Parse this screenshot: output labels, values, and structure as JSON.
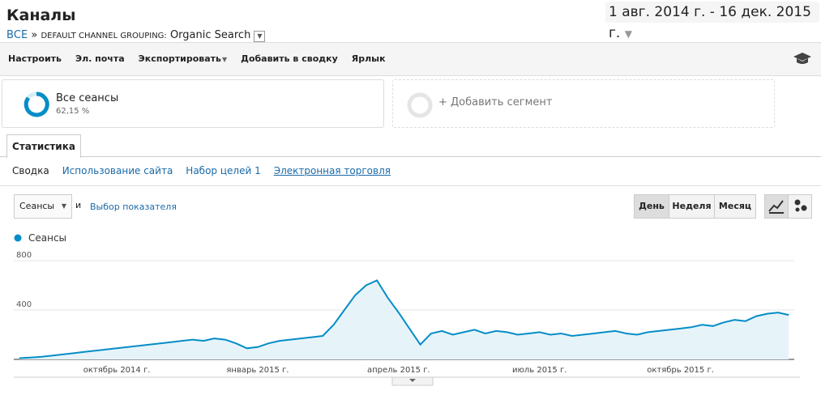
{
  "header": {
    "title": "Каналы",
    "date_range": "1 авг. 2014 г. - 16 дек. 2015 г.",
    "breadcrumb": {
      "all": "ВСЕ",
      "separator": "»",
      "dimension": "DEFAULT CHANNEL GROUPING:",
      "value": "Organic Search"
    }
  },
  "toolbar": [
    "Настроить",
    "Эл. почта",
    "Экспортировать",
    "Добавить в сводку",
    "Ярлык"
  ],
  "segments": [
    {
      "name": "Все сеансы",
      "share": "62,15 %"
    }
  ],
  "add_segment": "+ Добавить сегмент",
  "tab": "Статистика",
  "subtabs": [
    "Сводка",
    "Использование сайта",
    "Набор целей 1",
    "Электронная торговля"
  ],
  "metric_select": "Сеансы",
  "conjunction": "и",
  "metric_picker": "Выбор показателя",
  "periods": [
    "День",
    "Неделя",
    "Месяц"
  ],
  "chart_data": {
    "type": "line",
    "categories": [
      null,
      null,
      null,
      null,
      null,
      null,
      null,
      null,
      null,
      "октябрь 2014 г.",
      null,
      null,
      null,
      null,
      null,
      null,
      null,
      null,
      null,
      null,
      null,
      null,
      "январь 2015 г.",
      null,
      null,
      null,
      null,
      null,
      null,
      null,
      null,
      null,
      null,
      null,
      null,
      "апрель 2015 г.",
      null,
      null,
      null,
      null,
      null,
      null,
      null,
      null,
      null,
      null,
      null,
      null,
      "июль 2015 г.",
      null,
      null,
      null,
      null,
      null,
      null,
      null,
      null,
      null,
      null,
      null,
      null,
      "октябрь 2015 г.",
      null,
      null,
      null,
      null,
      null,
      null,
      null,
      null,
      null,
      null
    ],
    "series": [
      {
        "name": "Сеансы",
        "color": "#058dc7",
        "values": [
          10,
          15,
          20,
          30,
          40,
          50,
          60,
          70,
          80,
          90,
          100,
          110,
          120,
          130,
          140,
          150,
          160,
          150,
          170,
          160,
          130,
          90,
          100,
          130,
          150,
          160,
          170,
          180,
          190,
          280,
          400,
          520,
          600,
          640,
          500,
          380,
          250,
          120,
          210,
          230,
          200,
          220,
          240,
          210,
          230,
          220,
          200,
          210,
          220,
          200,
          210,
          190,
          200,
          210,
          220,
          230,
          210,
          200,
          220,
          230,
          240,
          250,
          260,
          280,
          270,
          300,
          320,
          310,
          350,
          370,
          380,
          360
        ]
      }
    ],
    "ylim": [
      0,
      800
    ],
    "yticks": [
      400,
      800
    ],
    "grid": true
  }
}
